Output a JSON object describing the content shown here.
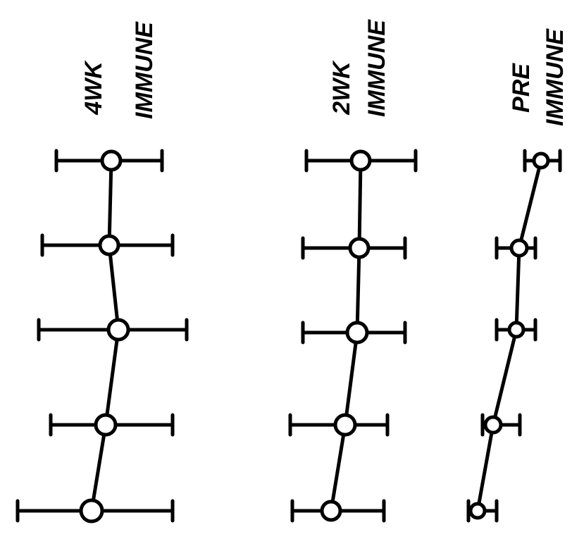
{
  "groups": [
    {
      "label": "4WK",
      "sublabel": "IMMUNE"
    },
    {
      "label": "2WK",
      "sublabel": "IMMUNE"
    },
    {
      "label": "PRE",
      "sublabel": "IMMUNE"
    }
  ]
}
